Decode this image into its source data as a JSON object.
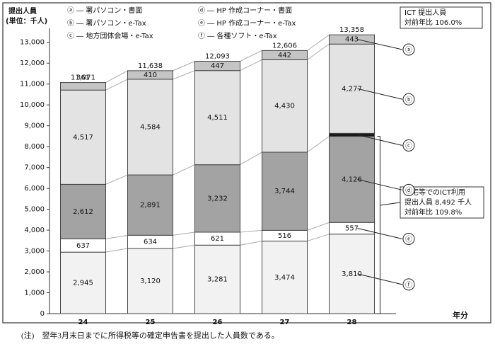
{
  "chart_data": {
    "type": "stacked_bar",
    "y_title": [
      "提出人員",
      "(単位：千人)"
    ],
    "x_title": "年分",
    "categories": [
      "24",
      "25",
      "26",
      "27",
      "28"
    ],
    "series": [
      {
        "name": "ⓕ ― 各種ソフト・e-Tax",
        "marker": "ⓕ",
        "color": "#f2f2f2",
        "values": [
          2945,
          3120,
          3281,
          3474,
          3810
        ],
        "value_labels": [
          "2,945",
          "3,120",
          "3,281",
          "3,474",
          "3,810"
        ]
      },
      {
        "name": "ⓔ ― HP 作成コーナー・e-Tax",
        "marker": "ⓔ",
        "color": "#ffffff",
        "values": [
          637,
          634,
          621,
          516,
          557
        ]
      },
      {
        "name": "ⓓ ― HP 作成コーナー・書面",
        "marker": "ⓓ",
        "color": "#a3a3a3",
        "values": [
          2612,
          2891,
          3232,
          3744,
          4126
        ],
        "value_labels": [
          "2,612",
          "2,891",
          "3,232",
          "3,744",
          "4,126"
        ]
      },
      {
        "name": "ⓒ ― 地方団体会場・e-Tax",
        "marker": "ⓒ",
        "color": "#1a1a1a",
        "values": [
          null,
          null,
          null,
          null,
          145
        ]
      },
      {
        "name": "ⓑ ― 署パソコン・e-Tax",
        "marker": "ⓑ",
        "color": "#e3e3e3",
        "values": [
          4517,
          4584,
          4511,
          4430,
          4277
        ],
        "value_labels": [
          "4,517",
          "4,584",
          "4,511",
          "4,430",
          "4,277"
        ]
      },
      {
        "name": "ⓐ ― 署パソコン・書面",
        "marker": "ⓐ",
        "color": "#c4c4c4",
        "values": [
          361,
          410,
          447,
          442,
          443
        ]
      }
    ],
    "totals": [
      11071,
      11638,
      12093,
      12606,
      13358
    ],
    "totals_labels": [
      "11,071",
      "11,638",
      "12,093",
      "12,606",
      "13,358"
    ],
    "ylim": [
      0,
      13500
    ],
    "yticks": [
      0,
      {
        "value": 1000,
        "label": "1,000"
      },
      {
        "value": 2000,
        "label": "2,000"
      },
      {
        "value": 3000,
        "label": "3,000"
      },
      {
        "value": 4000,
        "label": "4,000"
      },
      {
        "value": 5000,
        "label": "5,000"
      },
      {
        "value": 6000,
        "label": "6,000"
      },
      {
        "value": 7000,
        "label": "7,000"
      },
      {
        "value": 8000,
        "label": "8,000"
      },
      {
        "value": 9000,
        "label": "9,000"
      },
      {
        "value": 10000,
        "label": "10,000"
      },
      {
        "value": 11000,
        "label": "11,000"
      },
      {
        "value": 12000,
        "label": "12,000"
      },
      {
        "value": 13000,
        "label": "13,000"
      }
    ],
    "annotations": [
      [
        "ICT 提出人員",
        "対前年比 106.0%"
      ],
      [
        "自宅等でのICT利用",
        "提出人員 8,492 千人",
        "対前年比 109.8%"
      ]
    ],
    "note": "(注)　翌年3月末日までに所得税等の確定申告書を提出した人員数である。"
  }
}
